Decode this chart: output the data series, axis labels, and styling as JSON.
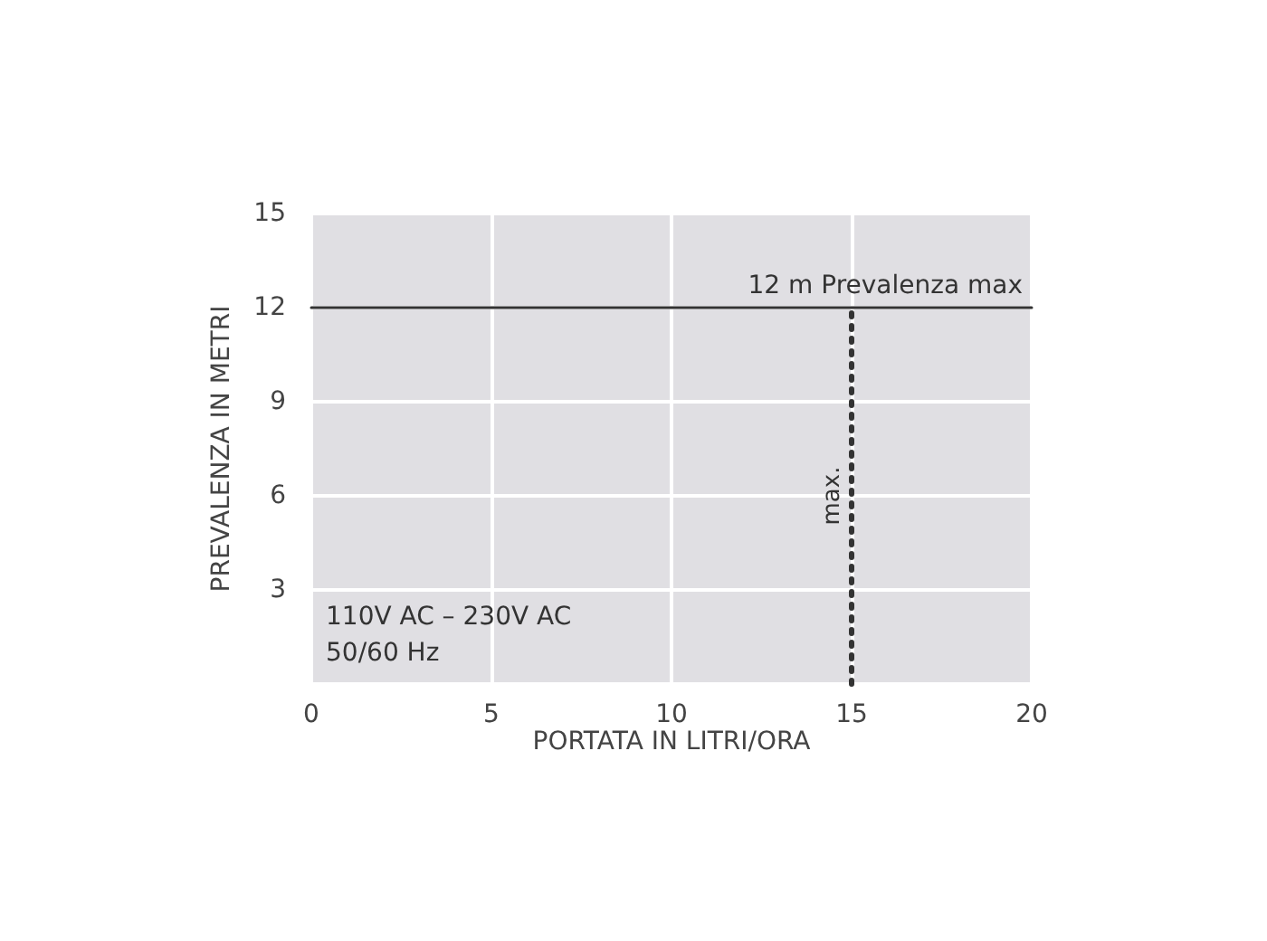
{
  "chart_data": {
    "type": "line",
    "xlabel": "PORTATA IN LITRI/ORA",
    "ylabel": "PREVALENZA IN METRI",
    "xlim": [
      0,
      20
    ],
    "xticks": [
      0,
      5,
      10,
      15,
      20
    ],
    "ylim": [
      0,
      15
    ],
    "yticks": [
      {
        "value": 0,
        "label": null
      },
      3,
      6,
      9,
      12,
      15
    ],
    "grid": true,
    "ref_lines": [
      {
        "axis": "y",
        "value": 12,
        "label": "12 m Prevalenza max",
        "color": "#333333",
        "line_style": "solid"
      },
      {
        "axis": "x",
        "value": 15,
        "label": "max.",
        "color": "#333333",
        "line_style": "dotted"
      }
    ],
    "annotations": [
      "110V AC – 230V AC",
      "50/60 Hz"
    ]
  }
}
